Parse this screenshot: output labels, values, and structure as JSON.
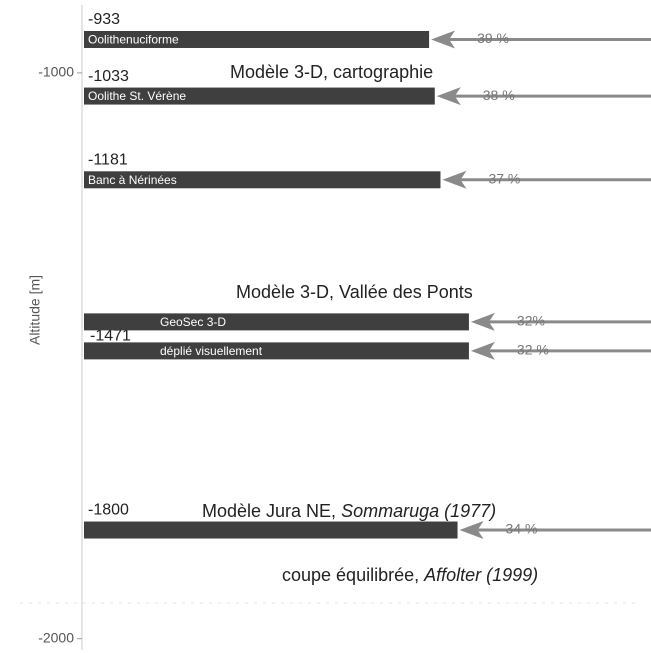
{
  "chart_data": {
    "type": "bar",
    "ylabel": "Altitude [m]",
    "ylim": [
      -880,
      -2020
    ],
    "yticks": [
      -1000,
      -2000
    ],
    "xlim": [
      100,
      0
    ],
    "bar_color": "#3f3f3f",
    "arrow_color": "#8a8a8a",
    "groups": [
      {
        "altitude": -933,
        "bars": [
          {
            "name": "Oolithenuciforme",
            "percent": 39,
            "percent_label": "39 %"
          }
        ]
      },
      {
        "altitude": -1033,
        "bars": [
          {
            "name": "Oolithe St. Vérène",
            "percent": 38,
            "percent_label": "38 %"
          }
        ]
      },
      {
        "altitude": -1181,
        "bars": [
          {
            "name": "Banc à Nérinées",
            "percent": 37,
            "percent_label": "37 %"
          }
        ]
      },
      {
        "altitude": -1471,
        "bars": [
          {
            "name": "GeoSec 3-D",
            "percent": 32,
            "percent_label": "32%"
          },
          {
            "name": "déplié visuellement",
            "percent": 32,
            "percent_label": "32 %"
          }
        ]
      },
      {
        "altitude": -1800,
        "bars": [
          {
            "percent": 34,
            "percent_label": "34 %"
          }
        ]
      }
    ],
    "annotations": [
      {
        "text": "Modèle 3-D, cartographie"
      },
      {
        "text": "Modèle 3-D, Vallée des Ponts"
      },
      {
        "text": "Modèle Jura NE, ",
        "italic": "Sommaruga (1977)"
      },
      {
        "text": "coupe équilibrée, ",
        "italic": "Affolter (1999)"
      }
    ]
  }
}
